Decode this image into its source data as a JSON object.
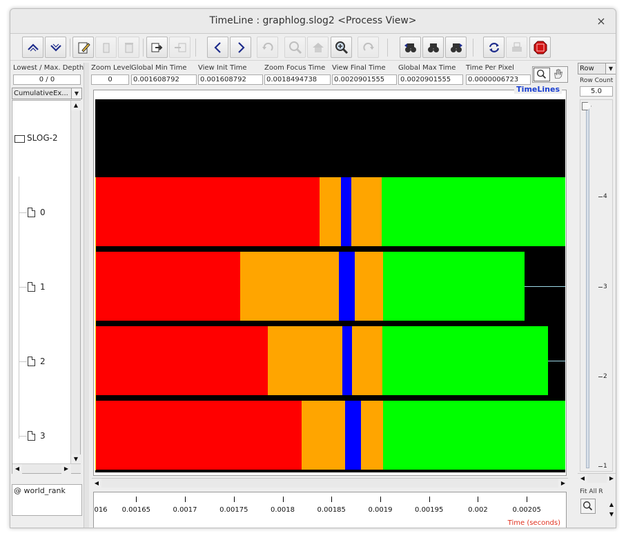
{
  "window": {
    "title": "TimeLine : graphlog.slog2  <Process View>",
    "close_glyph": "×"
  },
  "toolbar": {
    "buttons": [
      {
        "name": "scroll-up-icon",
        "enabled": true
      },
      {
        "name": "scroll-down-icon",
        "enabled": true
      },
      {
        "name": "edit-legend-icon",
        "enabled": true
      },
      {
        "name": "delete-icon",
        "enabled": false
      },
      {
        "name": "trash-icon",
        "enabled": false
      },
      {
        "name": "export-icon",
        "enabled": true
      },
      {
        "name": "import-icon",
        "enabled": false
      },
      {
        "name": "backward-icon",
        "enabled": true
      },
      {
        "name": "forward-icon",
        "enabled": true
      },
      {
        "name": "undo-icon",
        "enabled": false
      },
      {
        "name": "zoom-out-icon",
        "enabled": false
      },
      {
        "name": "home-icon",
        "enabled": false
      },
      {
        "name": "zoom-in-icon",
        "enabled": true
      },
      {
        "name": "redo-icon",
        "enabled": false
      },
      {
        "name": "search-back-icon",
        "enabled": true
      },
      {
        "name": "search-init-icon",
        "enabled": true
      },
      {
        "name": "search-forward-icon",
        "enabled": true
      },
      {
        "name": "refresh-icon",
        "enabled": true
      },
      {
        "name": "print-icon",
        "enabled": false
      },
      {
        "name": "stop-icon",
        "enabled": true
      }
    ],
    "accent": {
      "blue": "#1f2d8c",
      "stop_red": "#d11414"
    }
  },
  "info": {
    "lowest_max_depth_label": "Lowest / Max. Depth",
    "lowest_max_depth_value": "0 / 0",
    "zoom_level_label": "Zoom Level",
    "zoom_level_value": "0",
    "global_min_label": "Global Min Time",
    "global_min_value": "0.001608792",
    "view_init_label": "View  Init Time",
    "view_init_value": "0.001608792",
    "zoom_focus_label": "Zoom Focus Time",
    "zoom_focus_value": "0.0018494738",
    "view_final_label": "View Final Time",
    "view_final_value": "0.0020901555",
    "global_max_label": "Global Max Time",
    "global_max_value": "0.0020901555",
    "time_per_pixel_label": "Time Per Pixel",
    "time_per_pixel_value": "0.0000006723"
  },
  "left_panel": {
    "view_select": "CumulativeEx...",
    "root": "SLOG-2",
    "items": [
      "0",
      "1",
      "2",
      "3"
    ],
    "bottom_field": "@ world_rank"
  },
  "canvas": {
    "title": "TimeLines",
    "colors": {
      "red": "#ff0000",
      "orange": "#ffa500",
      "blue": "#0000ff",
      "green": "#00ff00",
      "black": "#000000",
      "rowline": "#9ed9e8"
    }
  },
  "ruler": {
    "clipped_label": "016",
    "ticks": [
      "0.00165",
      "0.0017",
      "0.00175",
      "0.0018",
      "0.00185",
      "0.0019",
      "0.00195",
      "0.002",
      "0.00205"
    ],
    "axis_label": "Time (seconds)"
  },
  "right_panel": {
    "row_select": "Row",
    "row_count_label": "Row Count",
    "row_count_value": "5.0",
    "scale_labels": [
      "4",
      "3",
      "2",
      "1"
    ],
    "fit_all_label": "Fit All R"
  },
  "chart_data": {
    "type": "gantt",
    "x_unit": "seconds",
    "x_range": [
      0.001608792,
      0.0020901555
    ],
    "rows": [
      {
        "row": "0",
        "segments": [
          {
            "color": "red",
            "start": 0.001608792,
            "end": 0.0018384
          },
          {
            "color": "orange",
            "start": 0.0018384,
            "end": 0.0018607
          },
          {
            "color": "blue",
            "start": 0.0018607,
            "end": 0.0018708
          },
          {
            "color": "orange",
            "start": 0.0018708,
            "end": 0.0019023
          },
          {
            "color": "green",
            "start": 0.0019023,
            "end": 0.0020901555
          }
        ]
      },
      {
        "row": "1",
        "segments": [
          {
            "color": "red",
            "start": 0.001608792,
            "end": 0.0017572
          },
          {
            "color": "orange",
            "start": 0.0017572,
            "end": 0.0018586
          },
          {
            "color": "blue",
            "start": 0.0018586,
            "end": 0.0018743
          },
          {
            "color": "orange",
            "start": 0.0018743,
            "end": 0.0019036
          },
          {
            "color": "green",
            "start": 0.0019036,
            "end": 0.0020482
          }
        ]
      },
      {
        "row": "2",
        "segments": [
          {
            "color": "red",
            "start": 0.001608792,
            "end": 0.0017854
          },
          {
            "color": "orange",
            "start": 0.0017854,
            "end": 0.0018615
          },
          {
            "color": "blue",
            "start": 0.0018615,
            "end": 0.0018717
          },
          {
            "color": "orange",
            "start": 0.0018717,
            "end": 0.0019028
          },
          {
            "color": "green",
            "start": 0.0019028,
            "end": 0.0020726
          }
        ]
      },
      {
        "row": "3",
        "segments": [
          {
            "color": "red",
            "start": 0.001608792,
            "end": 0.0018198
          },
          {
            "color": "orange",
            "start": 0.0018198,
            "end": 0.0018646
          },
          {
            "color": "blue",
            "start": 0.0018646,
            "end": 0.0018809
          },
          {
            "color": "orange",
            "start": 0.0018809,
            "end": 0.0019036
          },
          {
            "color": "green",
            "start": 0.0019036,
            "end": 0.0020901555
          }
        ]
      }
    ]
  }
}
